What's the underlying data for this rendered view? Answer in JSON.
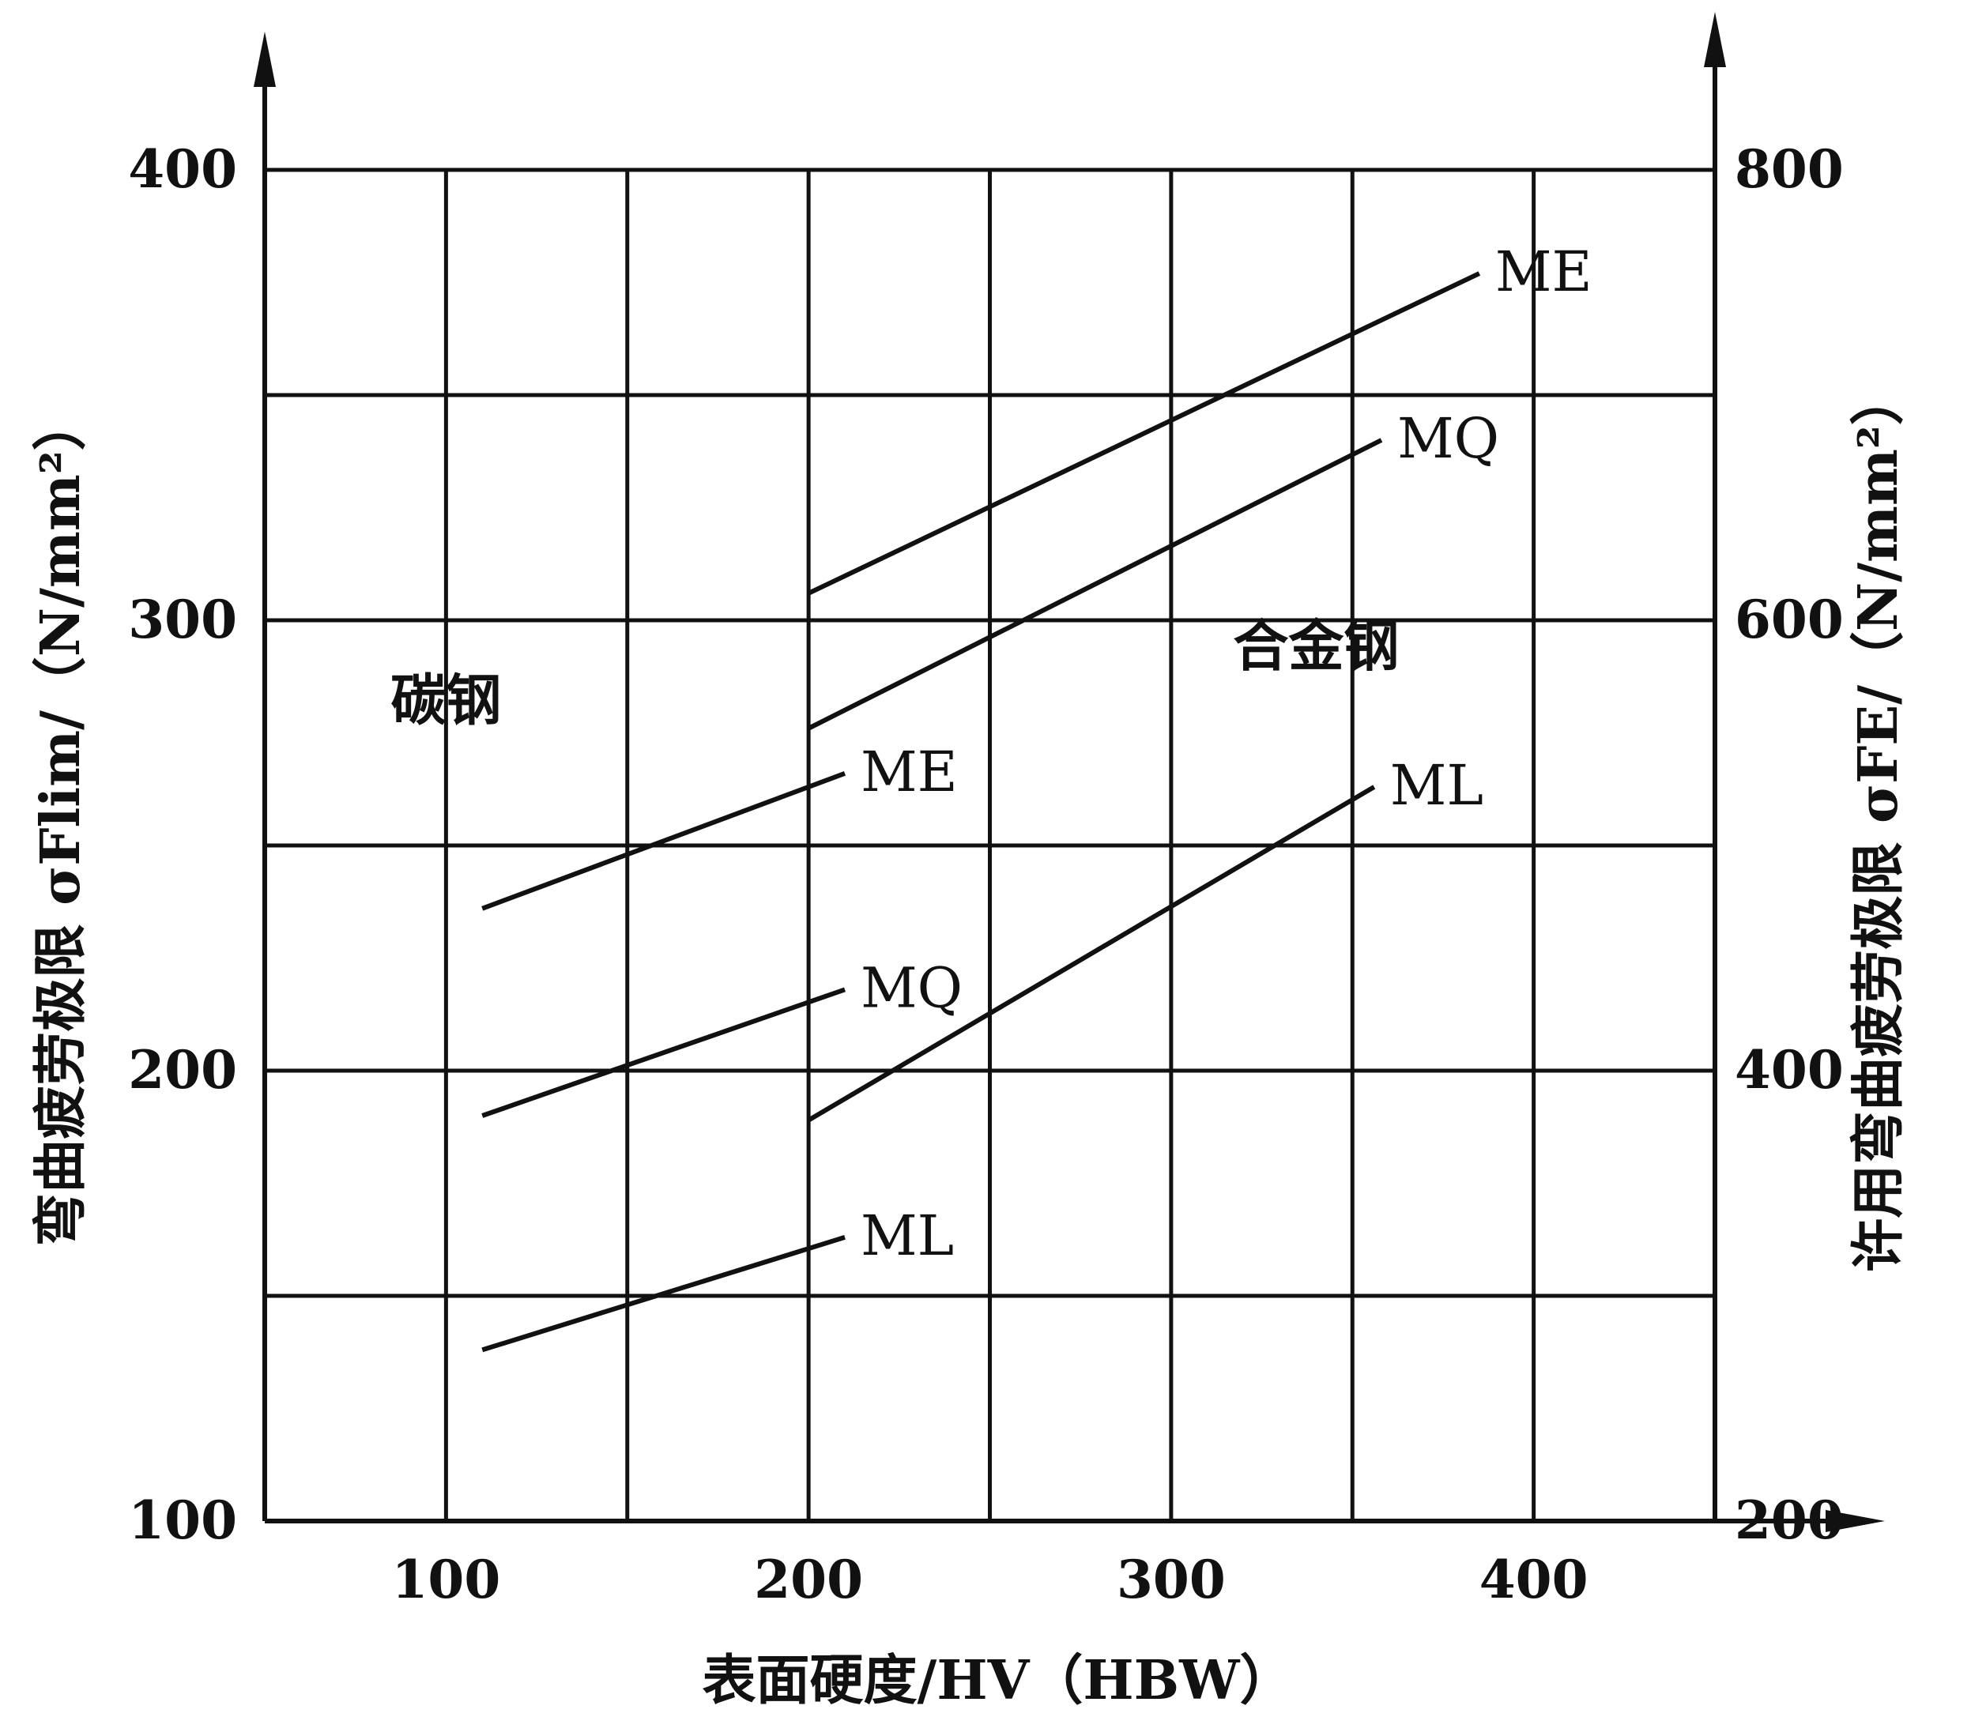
{
  "chart_data": {
    "type": "line",
    "xlabel": "表面硬度/HV（HBW）",
    "ylabel": "弯曲疲劳极限 σFlim/（N/mm²）",
    "y2label": "许用弯曲疲劳极限 σFE/（N/mm²）",
    "xlim": [
      50,
      450
    ],
    "ylim": [
      100,
      400
    ],
    "y2lim": [
      200,
      800
    ],
    "x_ticks": [
      100,
      200,
      300,
      400
    ],
    "x_tick_labels": [
      "100",
      "200",
      "300",
      "400"
    ],
    "y_ticks": [
      100,
      200,
      300,
      400
    ],
    "y_tick_labels": [
      "100",
      "200",
      "300",
      "400"
    ],
    "y2_ticks": [
      200,
      400,
      600,
      800
    ],
    "y2_tick_labels": [
      "200",
      "400",
      "600",
      "800"
    ],
    "grid": true,
    "grid_x": [
      100,
      150,
      200,
      250,
      300,
      350,
      400
    ],
    "grid_y": [
      100,
      150,
      200,
      250,
      300,
      350,
      400
    ],
    "regions": [
      {
        "label": "碳钢",
        "x": 100,
        "y": 278
      },
      {
        "label": "合金钢",
        "x": 340,
        "y": 290
      }
    ],
    "series": [
      {
        "group": "碳钢",
        "name": "ME",
        "x": [
          110,
          210
        ],
        "y": [
          236,
          266
        ]
      },
      {
        "group": "碳钢",
        "name": "MQ",
        "x": [
          110,
          210
        ],
        "y": [
          190,
          218
        ]
      },
      {
        "group": "碳钢",
        "name": "ML",
        "x": [
          110,
          210
        ],
        "y": [
          138,
          163
        ]
      },
      {
        "group": "合金钢",
        "name": "ME",
        "x": [
          200,
          385
        ],
        "y": [
          306,
          377
        ]
      },
      {
        "group": "合金钢",
        "name": "MQ",
        "x": [
          200,
          358
        ],
        "y": [
          276,
          340
        ]
      },
      {
        "group": "合金钢",
        "name": "ML",
        "x": [
          200,
          356
        ],
        "y": [
          189,
          263
        ]
      }
    ]
  }
}
